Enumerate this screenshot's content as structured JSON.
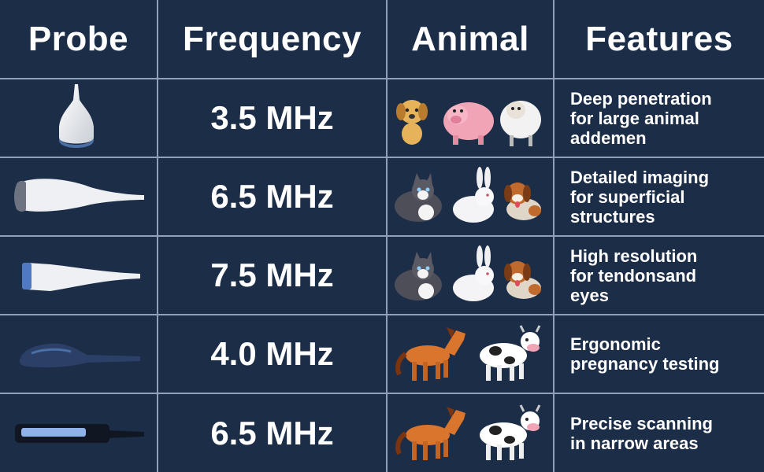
{
  "header": {
    "probe": "Probe",
    "frequency": "Frequency",
    "animal": "Animal",
    "features": "Features"
  },
  "rows": [
    {
      "probe_icon": "convex-probe-icon",
      "frequency": "3.5 MHz",
      "animals": [
        "dog-icon",
        "pig-icon",
        "sheep-icon"
      ],
      "features": [
        "Deep penetration",
        "for large animal",
        "addemen"
      ]
    },
    {
      "probe_icon": "microconvex-probe-icon",
      "frequency": "6.5 MHz",
      "animals": [
        "cat-icon",
        "rabbit-icon",
        "dog-icon"
      ],
      "features": [
        "Detailed imaging",
        "for superficial",
        "structures"
      ]
    },
    {
      "probe_icon": "linear-probe-icon",
      "frequency": "7.5 MHz",
      "animals": [
        "cat-icon",
        "rabbit-icon",
        "dog-icon"
      ],
      "features": [
        "High resolution",
        "for tendonsand",
        "eyes"
      ]
    },
    {
      "probe_icon": "rectal-probe-icon",
      "frequency": "4.0 MHz",
      "animals": [
        "horse-icon",
        "cow-icon"
      ],
      "features": [
        "Ergonomic",
        "pregnancy testing"
      ]
    },
    {
      "probe_icon": "rectal-linear-probe-icon",
      "frequency": "6.5 MHz",
      "animals": [
        "horse-icon",
        "cow-icon"
      ],
      "features": [
        "Precise scanning",
        "in narrow areas"
      ]
    }
  ],
  "colors": {
    "background": "#1c2d48",
    "grid": "#8fa0b8",
    "text": "#ffffff"
  }
}
